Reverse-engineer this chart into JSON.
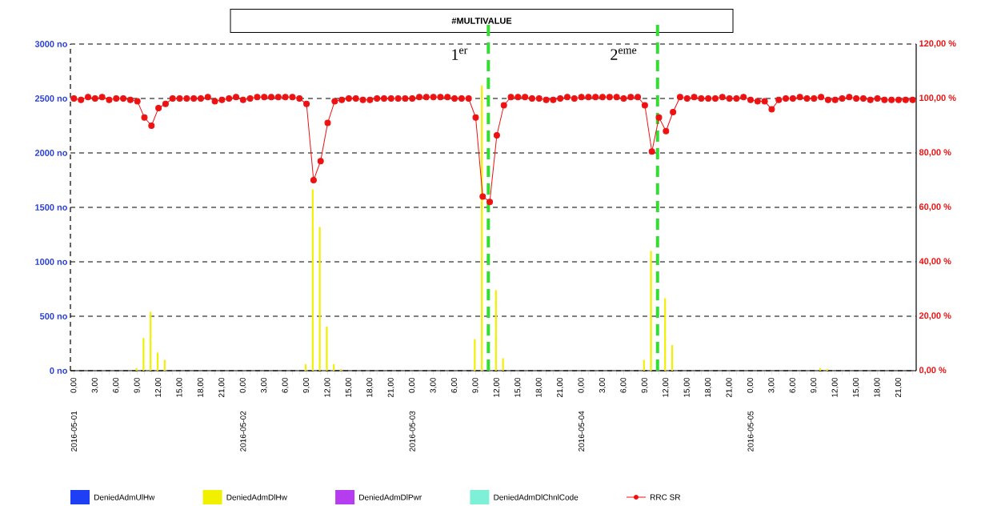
{
  "chart_data": {
    "type": "bar",
    "title": "#MULTIVALUE",
    "x": [
      "2016-05-01T00:00",
      "2016-05-01T01:00",
      "2016-05-01T02:00",
      "2016-05-01T03:00",
      "2016-05-01T04:00",
      "2016-05-01T05:00",
      "2016-05-01T06:00",
      "2016-05-01T07:00",
      "2016-05-01T08:00",
      "2016-05-01T09:00",
      "2016-05-01T10:00",
      "2016-05-01T11:00",
      "2016-05-01T12:00",
      "2016-05-01T13:00",
      "2016-05-01T14:00",
      "2016-05-01T15:00",
      "2016-05-01T16:00",
      "2016-05-01T17:00",
      "2016-05-01T18:00",
      "2016-05-01T19:00",
      "2016-05-01T20:00",
      "2016-05-01T21:00",
      "2016-05-01T22:00",
      "2016-05-01T23:00",
      "2016-05-02T00:00",
      "2016-05-02T01:00",
      "2016-05-02T02:00",
      "2016-05-02T03:00",
      "2016-05-02T04:00",
      "2016-05-02T05:00",
      "2016-05-02T06:00",
      "2016-05-02T07:00",
      "2016-05-02T08:00",
      "2016-05-02T09:00",
      "2016-05-02T10:00",
      "2016-05-02T11:00",
      "2016-05-02T12:00",
      "2016-05-02T13:00",
      "2016-05-02T14:00",
      "2016-05-02T15:00",
      "2016-05-02T16:00",
      "2016-05-02T17:00",
      "2016-05-02T18:00",
      "2016-05-02T19:00",
      "2016-05-02T20:00",
      "2016-05-02T21:00",
      "2016-05-02T22:00",
      "2016-05-02T23:00",
      "2016-05-03T00:00",
      "2016-05-03T01:00",
      "2016-05-03T02:00",
      "2016-05-03T03:00",
      "2016-05-03T04:00",
      "2016-05-03T05:00",
      "2016-05-03T06:00",
      "2016-05-03T07:00",
      "2016-05-03T08:00",
      "2016-05-03T09:00",
      "2016-05-03T10:00",
      "2016-05-03T11:00",
      "2016-05-03T12:00",
      "2016-05-03T13:00",
      "2016-05-03T14:00",
      "2016-05-03T15:00",
      "2016-05-03T16:00",
      "2016-05-03T17:00",
      "2016-05-03T18:00",
      "2016-05-03T19:00",
      "2016-05-03T20:00",
      "2016-05-03T21:00",
      "2016-05-03T22:00",
      "2016-05-03T23:00",
      "2016-05-04T00:00",
      "2016-05-04T01:00",
      "2016-05-04T02:00",
      "2016-05-04T03:00",
      "2016-05-04T04:00",
      "2016-05-04T05:00",
      "2016-05-04T06:00",
      "2016-05-04T07:00",
      "2016-05-04T08:00",
      "2016-05-04T09:00",
      "2016-05-04T10:00",
      "2016-05-04T11:00",
      "2016-05-04T12:00",
      "2016-05-04T13:00",
      "2016-05-04T14:00",
      "2016-05-04T15:00",
      "2016-05-04T16:00",
      "2016-05-04T17:00",
      "2016-05-04T18:00",
      "2016-05-04T19:00",
      "2016-05-04T20:00",
      "2016-05-04T21:00",
      "2016-05-04T22:00",
      "2016-05-04T23:00",
      "2016-05-05T00:00",
      "2016-05-05T01:00",
      "2016-05-05T02:00",
      "2016-05-05T03:00",
      "2016-05-05T04:00",
      "2016-05-05T05:00",
      "2016-05-05T06:00",
      "2016-05-05T07:00",
      "2016-05-05T08:00",
      "2016-05-05T09:00",
      "2016-05-05T10:00",
      "2016-05-05T11:00",
      "2016-05-05T12:00",
      "2016-05-05T13:00",
      "2016-05-05T14:00",
      "2016-05-05T15:00",
      "2016-05-05T16:00",
      "2016-05-05T17:00",
      "2016-05-05T18:00",
      "2016-05-05T19:00",
      "2016-05-05T20:00",
      "2016-05-05T21:00",
      "2016-05-05T22:00",
      "2016-05-05T23:00"
    ],
    "series": [
      {
        "name": "DeniedAdmUlHw",
        "color": "#1f3ff5",
        "values": [
          0,
          0,
          0,
          0,
          0,
          0,
          0,
          0,
          0,
          0,
          0,
          0,
          0,
          0,
          0,
          0,
          0,
          0,
          0,
          0,
          0,
          0,
          0,
          0,
          0,
          0,
          0,
          0,
          0,
          0,
          0,
          0,
          0,
          0,
          0,
          0,
          0,
          0,
          0,
          0,
          0,
          0,
          0,
          0,
          0,
          0,
          0,
          0,
          0,
          0,
          0,
          0,
          0,
          0,
          0,
          0,
          0,
          0,
          0,
          0,
          0,
          0,
          0,
          0,
          0,
          0,
          0,
          0,
          0,
          0,
          0,
          0,
          0,
          0,
          0,
          0,
          0,
          0,
          0,
          0,
          0,
          0,
          0,
          0,
          0,
          0,
          0,
          0,
          0,
          0,
          0,
          0,
          0,
          0,
          0,
          0,
          0,
          0,
          0,
          0,
          0,
          0,
          0,
          0,
          0,
          0,
          0,
          0,
          0,
          0,
          0,
          0,
          0,
          0,
          0,
          0,
          0,
          0,
          0,
          0
        ]
      },
      {
        "name": "DeniedAdmDlHw",
        "color": "#f0f000",
        "values": [
          0,
          0,
          0,
          0,
          0,
          0,
          0,
          0,
          0,
          25,
          300,
          540,
          165,
          100,
          0,
          0,
          0,
          0,
          0,
          0,
          0,
          0,
          0,
          0,
          0,
          0,
          0,
          0,
          0,
          0,
          0,
          0,
          0,
          60,
          1665,
          1320,
          405,
          60,
          15,
          0,
          0,
          0,
          0,
          0,
          0,
          0,
          0,
          0,
          0,
          0,
          0,
          0,
          0,
          0,
          0,
          0,
          0,
          290,
          2620,
          null,
          740,
          115,
          0,
          0,
          0,
          0,
          0,
          0,
          0,
          0,
          0,
          0,
          0,
          0,
          0,
          0,
          0,
          0,
          0,
          0,
          0,
          100,
          1100,
          null,
          665,
          235,
          0,
          0,
          0,
          0,
          0,
          0,
          0,
          0,
          0,
          0,
          0,
          0,
          0,
          0,
          0,
          0,
          0,
          0,
          0,
          0,
          25,
          15,
          0,
          0,
          0,
          0,
          0,
          0,
          0,
          0,
          0,
          0,
          0,
          0
        ]
      },
      {
        "name": "DeniedAdmDlPwr",
        "color": "#b63cf0",
        "values": [
          0,
          0,
          0,
          0,
          0,
          0,
          0,
          0,
          0,
          0,
          0,
          0,
          0,
          0,
          0,
          0,
          0,
          0,
          0,
          0,
          0,
          0,
          0,
          0,
          0,
          0,
          0,
          0,
          0,
          0,
          0,
          0,
          0,
          0,
          0,
          0,
          0,
          0,
          0,
          0,
          0,
          0,
          0,
          0,
          0,
          0,
          0,
          0,
          0,
          0,
          0,
          0,
          0,
          0,
          0,
          0,
          0,
          0,
          0,
          0,
          0,
          0,
          0,
          0,
          0,
          0,
          0,
          0,
          0,
          0,
          0,
          0,
          0,
          0,
          0,
          0,
          0,
          0,
          0,
          0,
          0,
          0,
          0,
          0,
          0,
          0,
          0,
          0,
          0,
          0,
          0,
          0,
          0,
          0,
          0,
          0,
          0,
          0,
          0,
          0,
          0,
          0,
          0,
          0,
          0,
          0,
          0,
          0,
          0,
          0,
          0,
          0,
          0,
          0,
          0,
          0,
          0,
          0,
          0,
          0
        ]
      },
      {
        "name": "DeniedAdmDlChnlCode",
        "color": "#7ff0d8",
        "values": [
          0,
          0,
          0,
          0,
          0,
          0,
          0,
          0,
          0,
          0,
          0,
          0,
          0,
          0,
          0,
          0,
          0,
          0,
          0,
          0,
          0,
          0,
          0,
          0,
          0,
          0,
          0,
          0,
          0,
          0,
          0,
          0,
          0,
          0,
          0,
          0,
          0,
          0,
          0,
          0,
          0,
          0,
          0,
          0,
          0,
          0,
          0,
          0,
          0,
          0,
          0,
          0,
          0,
          0,
          0,
          0,
          0,
          0,
          0,
          0,
          0,
          0,
          0,
          0,
          0,
          0,
          0,
          0,
          0,
          0,
          0,
          0,
          0,
          0,
          0,
          0,
          0,
          0,
          0,
          0,
          0,
          0,
          0,
          0,
          0,
          0,
          0,
          0,
          0,
          0,
          0,
          0,
          0,
          0,
          0,
          0,
          0,
          0,
          0,
          0,
          0,
          0,
          0,
          0,
          0,
          0,
          0,
          0,
          0,
          0,
          0,
          0,
          0,
          0,
          0,
          0,
          0,
          0,
          0,
          0
        ]
      },
      {
        "name": "RRC SR",
        "type": "line",
        "axis": "y2",
        "marker": "circle",
        "color": "#ee1111",
        "values": [
          100,
          99.5,
          100.5,
          100,
          100.5,
          99.5,
          100,
          100,
          99.5,
          99,
          93,
          90,
          96.5,
          98,
          100,
          100,
          100,
          100,
          100,
          100.5,
          99,
          99.5,
          100,
          100.5,
          99.5,
          100,
          100.5,
          100.5,
          100.5,
          100.5,
          100.5,
          100.5,
          100,
          98,
          70,
          77,
          91,
          99,
          99.5,
          100,
          100,
          99.5,
          99.5,
          100,
          100,
          100,
          100,
          100,
          100,
          100.5,
          100.5,
          100.5,
          100.5,
          100.5,
          100,
          100,
          100,
          93,
          64,
          62,
          86.5,
          97.5,
          100.5,
          100.5,
          100.5,
          100,
          100,
          99.5,
          99.5,
          100,
          100.5,
          100,
          100.5,
          100.5,
          100.5,
          100.5,
          100.5,
          100.5,
          100,
          100.5,
          100.5,
          97.5,
          80.5,
          93,
          88,
          95,
          100.5,
          100,
          100.5,
          100,
          100,
          100,
          100.5,
          100,
          100,
          100.5,
          99.5,
          99,
          99,
          96,
          99.5,
          100,
          100,
          100.5,
          100,
          100,
          100.5,
          99.5,
          99.5,
          100,
          100.5,
          100,
          100,
          99.5,
          100,
          99.5,
          99.5,
          99.5,
          99.5,
          99.5
        ]
      }
    ],
    "xlim": [
      "2016-04-30T23:30",
      "2016-05-05T23:30"
    ],
    "xticks": [
      {
        "value": "2016-05-01T00:00",
        "label": "0,00"
      },
      {
        "value": "2016-05-01T01:00",
        "label": null
      },
      {
        "value": "2016-05-01T02:00",
        "label": null
      },
      {
        "value": "2016-05-01T03:00",
        "label": "3,00"
      },
      {
        "value": "2016-05-01T04:00",
        "label": null
      },
      {
        "value": "2016-05-01T05:00",
        "label": null
      },
      {
        "value": "2016-05-01T06:00",
        "label": "6,00"
      },
      {
        "value": "2016-05-01T07:00",
        "label": null
      },
      {
        "value": "2016-05-01T08:00",
        "label": null
      },
      {
        "value": "2016-05-01T09:00",
        "label": "9,00"
      },
      {
        "value": "2016-05-01T10:00",
        "label": null
      },
      {
        "value": "2016-05-01T11:00",
        "label": null
      },
      {
        "value": "2016-05-01T12:00",
        "label": "12,00"
      },
      {
        "value": "2016-05-01T13:00",
        "label": null
      },
      {
        "value": "2016-05-01T14:00",
        "label": null
      },
      {
        "value": "2016-05-01T15:00",
        "label": "15,00"
      },
      {
        "value": "2016-05-01T16:00",
        "label": null
      },
      {
        "value": "2016-05-01T17:00",
        "label": null
      },
      {
        "value": "2016-05-01T18:00",
        "label": "18,00"
      },
      {
        "value": "2016-05-01T19:00",
        "label": null
      },
      {
        "value": "2016-05-01T20:00",
        "label": null
      },
      {
        "value": "2016-05-01T21:00",
        "label": "21,00"
      },
      {
        "value": "2016-05-01T22:00",
        "label": null
      },
      {
        "value": "2016-05-01T23:00",
        "label": null
      },
      {
        "value": "2016-05-02T00:00",
        "label": "0,00"
      },
      {
        "value": "2016-05-02T01:00",
        "label": null
      },
      {
        "value": "2016-05-02T02:00",
        "label": null
      },
      {
        "value": "2016-05-02T03:00",
        "label": "3,00"
      },
      {
        "value": "2016-05-02T04:00",
        "label": null
      },
      {
        "value": "2016-05-02T05:00",
        "label": null
      },
      {
        "value": "2016-05-02T06:00",
        "label": "6,00"
      },
      {
        "value": "2016-05-02T07:00",
        "label": null
      },
      {
        "value": "2016-05-02T08:00",
        "label": null
      },
      {
        "value": "2016-05-02T09:00",
        "label": "9,00"
      },
      {
        "value": "2016-05-02T10:00",
        "label": null
      },
      {
        "value": "2016-05-02T11:00",
        "label": null
      },
      {
        "value": "2016-05-02T12:00",
        "label": "12,00"
      },
      {
        "value": "2016-05-02T13:00",
        "label": null
      },
      {
        "value": "2016-05-02T14:00",
        "label": null
      },
      {
        "value": "2016-05-02T15:00",
        "label": "15,00"
      },
      {
        "value": "2016-05-02T16:00",
        "label": null
      },
      {
        "value": "2016-05-02T17:00",
        "label": null
      },
      {
        "value": "2016-05-02T18:00",
        "label": "18,00"
      },
      {
        "value": "2016-05-02T19:00",
        "label": null
      },
      {
        "value": "2016-05-02T20:00",
        "label": null
      },
      {
        "value": "2016-05-02T21:00",
        "label": "21,00"
      },
      {
        "value": "2016-05-02T22:00",
        "label": null
      },
      {
        "value": "2016-05-02T23:00",
        "label": null
      },
      {
        "value": "2016-05-03T00:00",
        "label": "0,00"
      },
      {
        "value": "2016-05-03T01:00",
        "label": null
      },
      {
        "value": "2016-05-03T02:00",
        "label": null
      },
      {
        "value": "2016-05-03T03:00",
        "label": "3,00"
      },
      {
        "value": "2016-05-03T04:00",
        "label": null
      },
      {
        "value": "2016-05-03T05:00",
        "label": null
      },
      {
        "value": "2016-05-03T06:00",
        "label": "6,00"
      },
      {
        "value": "2016-05-03T07:00",
        "label": null
      },
      {
        "value": "2016-05-03T08:00",
        "label": null
      },
      {
        "value": "2016-05-03T09:00",
        "label": "9,00"
      },
      {
        "value": "2016-05-03T10:00",
        "label": null
      },
      {
        "value": "2016-05-03T11:00",
        "label": null
      },
      {
        "value": "2016-05-03T12:00",
        "label": "12,00"
      },
      {
        "value": "2016-05-03T13:00",
        "label": null
      },
      {
        "value": "2016-05-03T14:00",
        "label": null
      },
      {
        "value": "2016-05-03T15:00",
        "label": "15,00"
      },
      {
        "value": "2016-05-03T16:00",
        "label": null
      },
      {
        "value": "2016-05-03T17:00",
        "label": null
      },
      {
        "value": "2016-05-03T18:00",
        "label": "18,00"
      },
      {
        "value": "2016-05-03T19:00",
        "label": null
      },
      {
        "value": "2016-05-03T20:00",
        "label": null
      },
      {
        "value": "2016-05-03T21:00",
        "label": "21,00"
      },
      {
        "value": "2016-05-03T22:00",
        "label": null
      },
      {
        "value": "2016-05-03T23:00",
        "label": null
      },
      {
        "value": "2016-05-04T00:00",
        "label": "0,00"
      },
      {
        "value": "2016-05-04T01:00",
        "label": null
      },
      {
        "value": "2016-05-04T02:00",
        "label": null
      },
      {
        "value": "2016-05-04T03:00",
        "label": "3,00"
      },
      {
        "value": "2016-05-04T04:00",
        "label": null
      },
      {
        "value": "2016-05-04T05:00",
        "label": null
      },
      {
        "value": "2016-05-04T06:00",
        "label": "6,00"
      },
      {
        "value": "2016-05-04T07:00",
        "label": null
      },
      {
        "value": "2016-05-04T08:00",
        "label": null
      },
      {
        "value": "2016-05-04T09:00",
        "label": "9,00"
      },
      {
        "value": "2016-05-04T10:00",
        "label": null
      },
      {
        "value": "2016-05-04T11:00",
        "label": null
      },
      {
        "value": "2016-05-04T12:00",
        "label": "12,00"
      },
      {
        "value": "2016-05-04T13:00",
        "label": null
      },
      {
        "value": "2016-05-04T14:00",
        "label": null
      },
      {
        "value": "2016-05-04T15:00",
        "label": "15,00"
      },
      {
        "value": "2016-05-04T16:00",
        "label": null
      },
      {
        "value": "2016-05-04T17:00",
        "label": null
      },
      {
        "value": "2016-05-04T18:00",
        "label": "18,00"
      },
      {
        "value": "2016-05-04T19:00",
        "label": null
      },
      {
        "value": "2016-05-04T20:00",
        "label": null
      },
      {
        "value": "2016-05-04T21:00",
        "label": "21,00"
      },
      {
        "value": "2016-05-04T22:00",
        "label": null
      },
      {
        "value": "2016-05-04T23:00",
        "label": null
      },
      {
        "value": "2016-05-05T00:00",
        "label": "0,00"
      },
      {
        "value": "2016-05-05T01:00",
        "label": null
      },
      {
        "value": "2016-05-05T02:00",
        "label": null
      },
      {
        "value": "2016-05-05T03:00",
        "label": "3,00"
      },
      {
        "value": "2016-05-05T04:00",
        "label": null
      },
      {
        "value": "2016-05-05T05:00",
        "label": null
      },
      {
        "value": "2016-05-05T06:00",
        "label": "6,00"
      },
      {
        "value": "2016-05-05T07:00",
        "label": null
      },
      {
        "value": "2016-05-05T08:00",
        "label": null
      },
      {
        "value": "2016-05-05T09:00",
        "label": "9,00"
      },
      {
        "value": "2016-05-05T10:00",
        "label": null
      },
      {
        "value": "2016-05-05T11:00",
        "label": null
      },
      {
        "value": "2016-05-05T12:00",
        "label": "12,00"
      },
      {
        "value": "2016-05-05T13:00",
        "label": null
      },
      {
        "value": "2016-05-05T14:00",
        "label": null
      },
      {
        "value": "2016-05-05T15:00",
        "label": "15,00"
      },
      {
        "value": "2016-05-05T16:00",
        "label": null
      },
      {
        "value": "2016-05-05T17:00",
        "label": null
      },
      {
        "value": "2016-05-05T18:00",
        "label": "18,00"
      },
      {
        "value": "2016-05-05T19:00",
        "label": null
      },
      {
        "value": "2016-05-05T20:00",
        "label": null
      },
      {
        "value": "2016-05-05T21:00",
        "label": "21,00"
      },
      {
        "value": "2016-05-05T22:00",
        "label": null
      },
      {
        "value": "2016-05-05T23:00",
        "label": null
      }
    ],
    "ylim": [
      0,
      3000
    ],
    "yticks": [
      {
        "value": 0,
        "label": "0 no"
      },
      {
        "value": 500,
        "label": "500 no"
      },
      {
        "value": 1000,
        "label": "1000 no"
      },
      {
        "value": 1500,
        "label": "1500 no"
      },
      {
        "value": 2000,
        "label": "2000 no"
      },
      {
        "value": 2500,
        "label": "2500 no"
      },
      {
        "value": 3000,
        "label": "3000 no"
      }
    ],
    "y2lim": [
      0,
      120
    ],
    "y2ticks": [
      {
        "value": 0,
        "label": "0,00 %"
      },
      {
        "value": 20,
        "label": "20,00 %"
      },
      {
        "value": 40,
        "label": "40,00 %"
      },
      {
        "value": 60,
        "label": "60,00 %"
      },
      {
        "value": 80,
        "label": "80,00 %"
      },
      {
        "value": 100,
        "label": "100,00 %"
      },
      {
        "value": 120,
        "label": "120,00 %"
      }
    ],
    "ref_lines": [
      {
        "axis": "x",
        "value": "2016-05-03T10:48",
        "label": "1$^{er}$",
        "color": "#33dd33",
        "line_style": "dashed"
      },
      {
        "axis": "x",
        "value": "2016-05-04T10:48",
        "label": "2$^{eme}$",
        "color": "#33dd33",
        "line_style": "dashed"
      }
    ],
    "annotations": [
      "2016-05-01",
      "2016-05-02",
      "2016-05-03",
      "2016-05-04",
      "2016-05-05"
    ],
    "grid": "y",
    "legend": "bottom"
  }
}
